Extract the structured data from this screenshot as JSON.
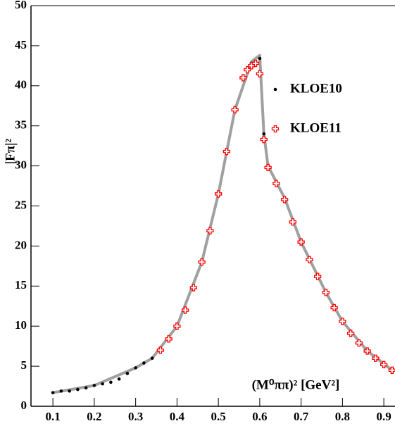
{
  "chart_data": {
    "type": "scatter",
    "xlabel": "(M⁰ππ)² [GeV²]",
    "ylabel": "|Fπ|²",
    "xlim": [
      0.047,
      0.927
    ],
    "ylim": [
      0,
      50
    ],
    "xticks": [
      0.1,
      0.2,
      0.3,
      0.4,
      0.5,
      0.6,
      0.7,
      0.8,
      0.9
    ],
    "yticks": [
      0,
      5,
      10,
      15,
      20,
      25,
      30,
      35,
      40,
      45,
      50
    ],
    "legend": "upper right",
    "series": [
      {
        "name": "KLOE10",
        "color": "#000000",
        "marker": "dot",
        "x": [
          0.1,
          0.12,
          0.14,
          0.16,
          0.18,
          0.2,
          0.22,
          0.24,
          0.26,
          0.28,
          0.3,
          0.32,
          0.34,
          0.36,
          0.38,
          0.4,
          0.42,
          0.44,
          0.46,
          0.48,
          0.5,
          0.52,
          0.54,
          0.56,
          0.58,
          0.6,
          0.61,
          0.62,
          0.64,
          0.66,
          0.68,
          0.7,
          0.72,
          0.74,
          0.76,
          0.78,
          0.8,
          0.82,
          0.84,
          0.86,
          0.88,
          0.9,
          0.92
        ],
        "values": [
          1.7,
          1.9,
          1.9,
          2.1,
          2.3,
          2.6,
          2.8,
          3.0,
          3.4,
          4.1,
          4.8,
          5.4,
          6.0,
          7.0,
          8.4,
          10.0,
          12.0,
          14.8,
          18.0,
          21.9,
          26.5,
          31.8,
          37.0,
          41.0,
          42.8,
          43.4,
          34.0,
          30.0,
          28.0,
          26.0,
          23.0,
          20.5,
          18.3,
          16.2,
          14.2,
          12.3,
          10.6,
          9.1,
          7.9,
          6.9,
          6.0,
          5.2,
          4.5
        ]
      },
      {
        "name": "KLOE11",
        "color": "#ff0000",
        "marker": "cross",
        "x": [
          0.36,
          0.38,
          0.4,
          0.42,
          0.44,
          0.46,
          0.48,
          0.5,
          0.52,
          0.54,
          0.56,
          0.57,
          0.58,
          0.59,
          0.6,
          0.61,
          0.62,
          0.64,
          0.66,
          0.68,
          0.7,
          0.72,
          0.74,
          0.76,
          0.78,
          0.8,
          0.82,
          0.84,
          0.86,
          0.88,
          0.9,
          0.92
        ],
        "values": [
          7.0,
          8.4,
          10.0,
          12.0,
          14.8,
          18.0,
          21.9,
          26.5,
          31.8,
          37.0,
          41.0,
          42.0,
          42.5,
          42.8,
          41.5,
          33.3,
          29.8,
          27.8,
          25.8,
          23.0,
          20.5,
          18.3,
          16.2,
          14.2,
          12.3,
          10.6,
          9.1,
          7.9,
          6.9,
          6.0,
          5.2,
          4.5
        ]
      },
      {
        "color": "#a0a0a0",
        "marker": "band",
        "x": [
          0.1,
          0.2,
          0.3,
          0.34,
          0.4,
          0.46,
          0.5,
          0.54,
          0.58,
          0.6,
          0.61,
          0.62,
          0.66,
          0.7,
          0.76,
          0.8,
          0.86,
          0.92
        ],
        "values": [
          1.7,
          2.6,
          4.8,
          6.0,
          10.0,
          18.0,
          26.5,
          37.0,
          43.0,
          43.8,
          34.0,
          30.0,
          26.0,
          20.5,
          14.2,
          10.6,
          6.9,
          4.5
        ]
      }
    ]
  }
}
